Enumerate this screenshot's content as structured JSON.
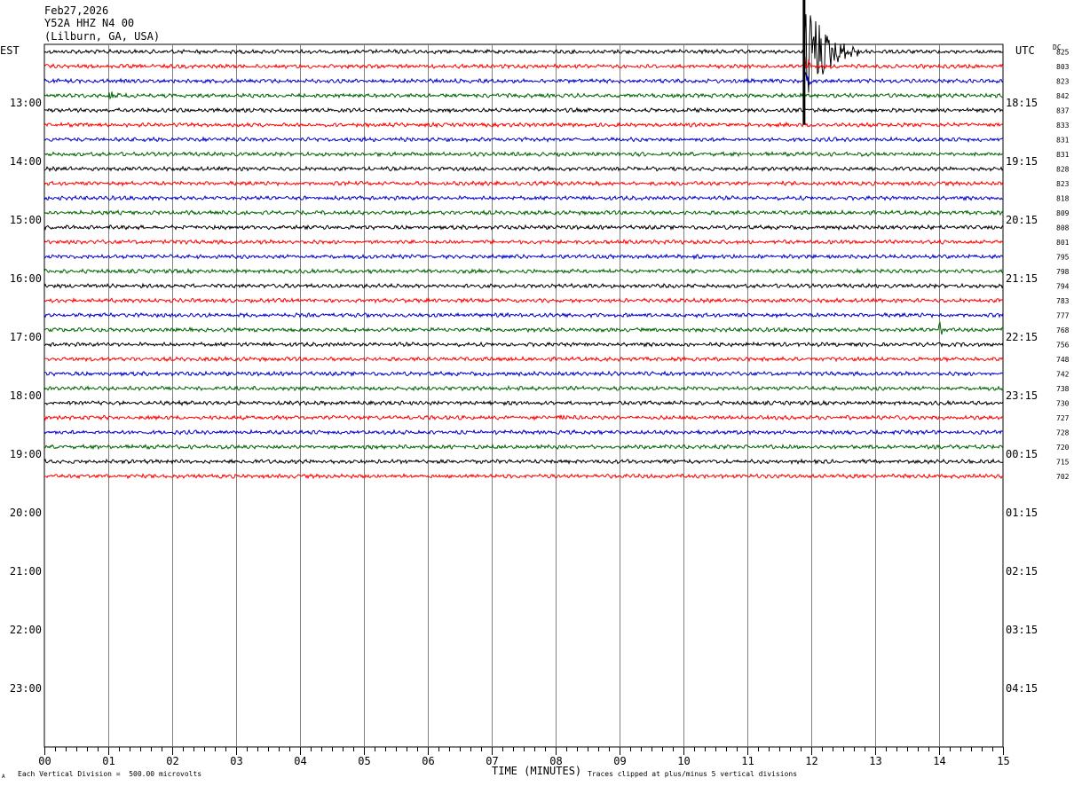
{
  "header": {
    "date": "Feb27,2026",
    "station": "Y52A HHZ N4 00",
    "location": "(Lilburn, GA, USA)"
  },
  "left_zone_label": "EST",
  "right_zone_label": "UTC",
  "dc_label": "DC",
  "colors": {
    "cycle": [
      "#000000",
      "#ff0000",
      "#0000cc",
      "#006400"
    ],
    "grid": "#808080"
  },
  "chart_data": {
    "type": "line",
    "kind": "helicorder seismogram",
    "xlabel": "TIME (MINUTES)",
    "x_ticks": [
      "00",
      "01",
      "02",
      "03",
      "04",
      "05",
      "06",
      "07",
      "08",
      "09",
      "10",
      "11",
      "12",
      "13",
      "14",
      "15"
    ],
    "xlim": [
      0,
      15
    ],
    "rows_total": 48,
    "rows_plotted": 30,
    "row_minutes": 15,
    "left_hour_labels": [
      "13:00",
      "14:00",
      "15:00",
      "16:00",
      "17:00",
      "18:00",
      "19:00",
      "20:00",
      "21:00",
      "22:00",
      "23:00"
    ],
    "right_hour_labels": [
      "18:15",
      "19:15",
      "20:15",
      "21:15",
      "22:15",
      "23:15",
      "00:15",
      "01:15",
      "02:15",
      "03:15",
      "04:15"
    ],
    "dc_values": [
      "825",
      "803",
      "823",
      "842",
      "837",
      "833",
      "831",
      "831",
      "828",
      "823",
      "818",
      "809",
      "808",
      "801",
      "795",
      "798",
      "794",
      "783",
      "777",
      "768",
      "756",
      "748",
      "742",
      "738",
      "730",
      "727",
      "728",
      "720",
      "715",
      "702"
    ],
    "events": [
      {
        "row": 0,
        "minute": 11.88,
        "amplitude": "clipped",
        "duration_min": 0.9
      },
      {
        "row": 1,
        "minute": 11.9,
        "amplitude": "large",
        "duration_min": 0.2
      },
      {
        "row": 2,
        "minute": 11.9,
        "amplitude": "large",
        "duration_min": 0.15
      },
      {
        "row": 3,
        "minute": 1.0,
        "amplitude": "small",
        "duration_min": 0.25
      },
      {
        "row": 19,
        "minute": 14.0,
        "amplitude": "small",
        "duration_min": 0.2
      },
      {
        "row": 22,
        "minute": 8.9,
        "amplitude": "tiny",
        "duration_min": 0.05
      },
      {
        "row": 25,
        "minute": 8.05,
        "amplitude": "small",
        "duration_min": 0.15
      }
    ]
  },
  "footer": {
    "scale_note": "Each Vertical Division =  500.00 microvolts",
    "clip_note": "Traces clipped at plus/minus 5 vertical divisions",
    "corner_mark": "A"
  }
}
